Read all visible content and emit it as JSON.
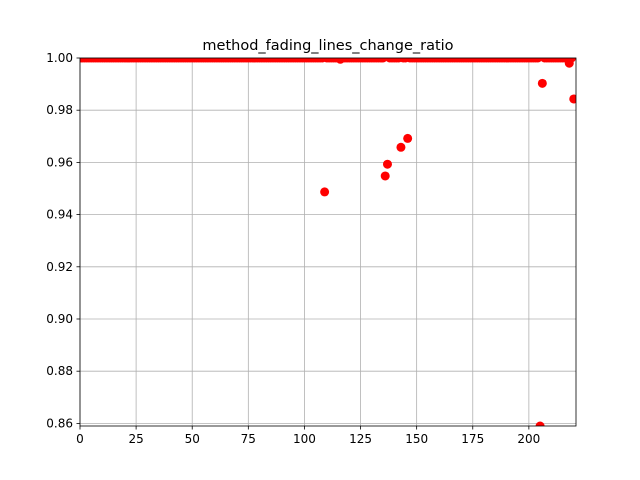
{
  "chart_data": {
    "type": "scatter",
    "title": "method_fading_lines_change_ratio",
    "xlabel": "",
    "ylabel": "",
    "xlim": [
      0,
      221
    ],
    "ylim": [
      0.859,
      1.0
    ],
    "xticks": [
      0,
      25,
      50,
      75,
      100,
      125,
      150,
      175,
      200
    ],
    "xtick_labels": [
      "0",
      "25",
      "50",
      "75",
      "100",
      "125",
      "150",
      "175",
      "200"
    ],
    "yticks": [
      0.86,
      0.88,
      0.9,
      0.92,
      0.94,
      0.96,
      0.98,
      1.0
    ],
    "ytick_labels": [
      "0.86",
      "0.88",
      "0.90",
      "0.92",
      "0.94",
      "0.96",
      "0.98",
      "1.00"
    ],
    "grid": true,
    "marker_color": "#ff0000",
    "series": [
      {
        "points": [
          [
            0,
            1.0
          ],
          [
            1,
            1.0
          ],
          [
            2,
            1.0
          ],
          [
            3,
            1.0
          ],
          [
            4,
            1.0
          ],
          [
            5,
            1.0
          ],
          [
            6,
            1.0
          ],
          [
            7,
            1.0
          ],
          [
            8,
            1.0
          ],
          [
            9,
            1.0
          ],
          [
            10,
            1.0
          ],
          [
            11,
            1.0
          ],
          [
            12,
            1.0
          ],
          [
            13,
            1.0
          ],
          [
            14,
            1.0
          ],
          [
            15,
            1.0
          ],
          [
            16,
            1.0
          ],
          [
            17,
            1.0
          ],
          [
            18,
            1.0
          ],
          [
            19,
            1.0
          ],
          [
            20,
            1.0
          ],
          [
            21,
            1.0
          ],
          [
            22,
            1.0
          ],
          [
            23,
            1.0
          ],
          [
            24,
            1.0
          ],
          [
            25,
            1.0
          ],
          [
            26,
            1.0
          ],
          [
            27,
            1.0
          ],
          [
            28,
            1.0
          ],
          [
            29,
            1.0
          ],
          [
            30,
            1.0
          ],
          [
            31,
            1.0
          ],
          [
            32,
            1.0
          ],
          [
            33,
            1.0
          ],
          [
            34,
            1.0
          ],
          [
            35,
            1.0
          ],
          [
            36,
            1.0
          ],
          [
            37,
            1.0
          ],
          [
            38,
            1.0
          ],
          [
            39,
            1.0
          ],
          [
            40,
            1.0
          ],
          [
            41,
            1.0
          ],
          [
            42,
            1.0
          ],
          [
            43,
            1.0
          ],
          [
            44,
            1.0
          ],
          [
            45,
            1.0
          ],
          [
            46,
            1.0
          ],
          [
            47,
            1.0
          ],
          [
            48,
            1.0
          ],
          [
            49,
            1.0
          ],
          [
            50,
            1.0
          ],
          [
            51,
            1.0
          ],
          [
            52,
            1.0
          ],
          [
            53,
            1.0
          ],
          [
            54,
            1.0
          ],
          [
            55,
            1.0
          ],
          [
            56,
            1.0
          ],
          [
            57,
            1.0
          ],
          [
            58,
            1.0
          ],
          [
            59,
            1.0
          ],
          [
            60,
            1.0
          ],
          [
            61,
            1.0
          ],
          [
            62,
            1.0
          ],
          [
            63,
            1.0
          ],
          [
            64,
            1.0
          ],
          [
            65,
            1.0
          ],
          [
            66,
            1.0
          ],
          [
            67,
            1.0
          ],
          [
            68,
            1.0
          ],
          [
            69,
            1.0
          ],
          [
            70,
            1.0
          ],
          [
            71,
            1.0
          ],
          [
            72,
            1.0
          ],
          [
            73,
            1.0
          ],
          [
            74,
            1.0
          ],
          [
            75,
            1.0
          ],
          [
            76,
            1.0
          ],
          [
            77,
            1.0
          ],
          [
            78,
            1.0
          ],
          [
            79,
            1.0
          ],
          [
            80,
            1.0
          ],
          [
            81,
            1.0
          ],
          [
            82,
            1.0
          ],
          [
            83,
            1.0
          ],
          [
            84,
            1.0
          ],
          [
            85,
            1.0
          ],
          [
            86,
            1.0
          ],
          [
            87,
            1.0
          ],
          [
            88,
            1.0
          ],
          [
            89,
            1.0
          ],
          [
            90,
            1.0
          ],
          [
            91,
            1.0
          ],
          [
            92,
            1.0
          ],
          [
            93,
            1.0
          ],
          [
            94,
            1.0
          ],
          [
            95,
            1.0
          ],
          [
            96,
            1.0
          ],
          [
            97,
            1.0
          ],
          [
            98,
            1.0
          ],
          [
            99,
            1.0
          ],
          [
            100,
            1.0
          ],
          [
            101,
            1.0
          ],
          [
            102,
            1.0
          ],
          [
            103,
            1.0
          ],
          [
            104,
            1.0
          ],
          [
            105,
            1.0
          ],
          [
            106,
            1.0
          ],
          [
            107,
            1.0
          ],
          [
            108,
            1.0
          ],
          [
            109,
            0.9487
          ],
          [
            110,
            1.0
          ],
          [
            111,
            1.0
          ],
          [
            112,
            1.0
          ],
          [
            113,
            1.0
          ],
          [
            114,
            1.0
          ],
          [
            115,
            1.0
          ],
          [
            116,
            0.9995
          ],
          [
            117,
            1.0
          ],
          [
            118,
            1.0
          ],
          [
            119,
            1.0
          ],
          [
            120,
            1.0
          ],
          [
            121,
            1.0
          ],
          [
            122,
            1.0
          ],
          [
            123,
            1.0
          ],
          [
            124,
            1.0
          ],
          [
            125,
            1.0
          ],
          [
            126,
            1.0
          ],
          [
            127,
            1.0
          ],
          [
            128,
            1.0
          ],
          [
            129,
            1.0
          ],
          [
            130,
            1.0
          ],
          [
            131,
            1.0
          ],
          [
            132,
            1.0
          ],
          [
            133,
            1.0
          ],
          [
            134,
            1.0
          ],
          [
            135,
            1.0
          ],
          [
            136,
            0.9548
          ],
          [
            137,
            0.9593
          ],
          [
            138,
            1.0
          ],
          [
            139,
            1.0
          ],
          [
            140,
            1.0
          ],
          [
            141,
            1.0
          ],
          [
            142,
            1.0
          ],
          [
            143,
            0.9658
          ],
          [
            144,
            1.0
          ],
          [
            145,
            1.0
          ],
          [
            146,
            0.9692
          ],
          [
            147,
            1.0
          ],
          [
            148,
            1.0
          ],
          [
            149,
            1.0
          ],
          [
            150,
            1.0
          ],
          [
            151,
            1.0
          ],
          [
            152,
            1.0
          ],
          [
            153,
            1.0
          ],
          [
            154,
            1.0
          ],
          [
            155,
            1.0
          ],
          [
            156,
            1.0
          ],
          [
            157,
            1.0
          ],
          [
            158,
            1.0
          ],
          [
            159,
            1.0
          ],
          [
            160,
            1.0
          ],
          [
            161,
            1.0
          ],
          [
            162,
            1.0
          ],
          [
            163,
            1.0
          ],
          [
            164,
            1.0
          ],
          [
            165,
            1.0
          ],
          [
            166,
            1.0
          ],
          [
            167,
            1.0
          ],
          [
            168,
            1.0
          ],
          [
            169,
            1.0
          ],
          [
            170,
            1.0
          ],
          [
            171,
            1.0
          ],
          [
            172,
            1.0
          ],
          [
            173,
            1.0
          ],
          [
            174,
            1.0
          ],
          [
            175,
            1.0
          ],
          [
            176,
            1.0
          ],
          [
            177,
            1.0
          ],
          [
            178,
            1.0
          ],
          [
            179,
            1.0
          ],
          [
            180,
            1.0
          ],
          [
            181,
            1.0
          ],
          [
            182,
            1.0
          ],
          [
            183,
            1.0
          ],
          [
            184,
            1.0
          ],
          [
            185,
            1.0
          ],
          [
            186,
            1.0
          ],
          [
            187,
            1.0
          ],
          [
            188,
            1.0
          ],
          [
            189,
            1.0
          ],
          [
            190,
            1.0
          ],
          [
            191,
            1.0
          ],
          [
            192,
            1.0
          ],
          [
            193,
            1.0
          ],
          [
            194,
            1.0
          ],
          [
            195,
            1.0
          ],
          [
            196,
            1.0
          ],
          [
            197,
            1.0
          ],
          [
            198,
            1.0
          ],
          [
            199,
            1.0
          ],
          [
            200,
            1.0
          ],
          [
            201,
            1.0
          ],
          [
            202,
            1.0
          ],
          [
            203,
            1.0
          ],
          [
            204,
            1.0
          ],
          [
            205,
            0.859
          ],
          [
            206,
            0.9903
          ],
          [
            207,
            1.0
          ],
          [
            208,
            1.0
          ],
          [
            209,
            1.0
          ],
          [
            210,
            1.0
          ],
          [
            211,
            1.0
          ],
          [
            212,
            1.0
          ],
          [
            213,
            1.0
          ],
          [
            214,
            1.0
          ],
          [
            215,
            1.0
          ],
          [
            216,
            1.0
          ],
          [
            217,
            1.0
          ],
          [
            218,
            0.998
          ],
          [
            219,
            1.0
          ],
          [
            220,
            0.9843
          ]
        ]
      }
    ]
  }
}
